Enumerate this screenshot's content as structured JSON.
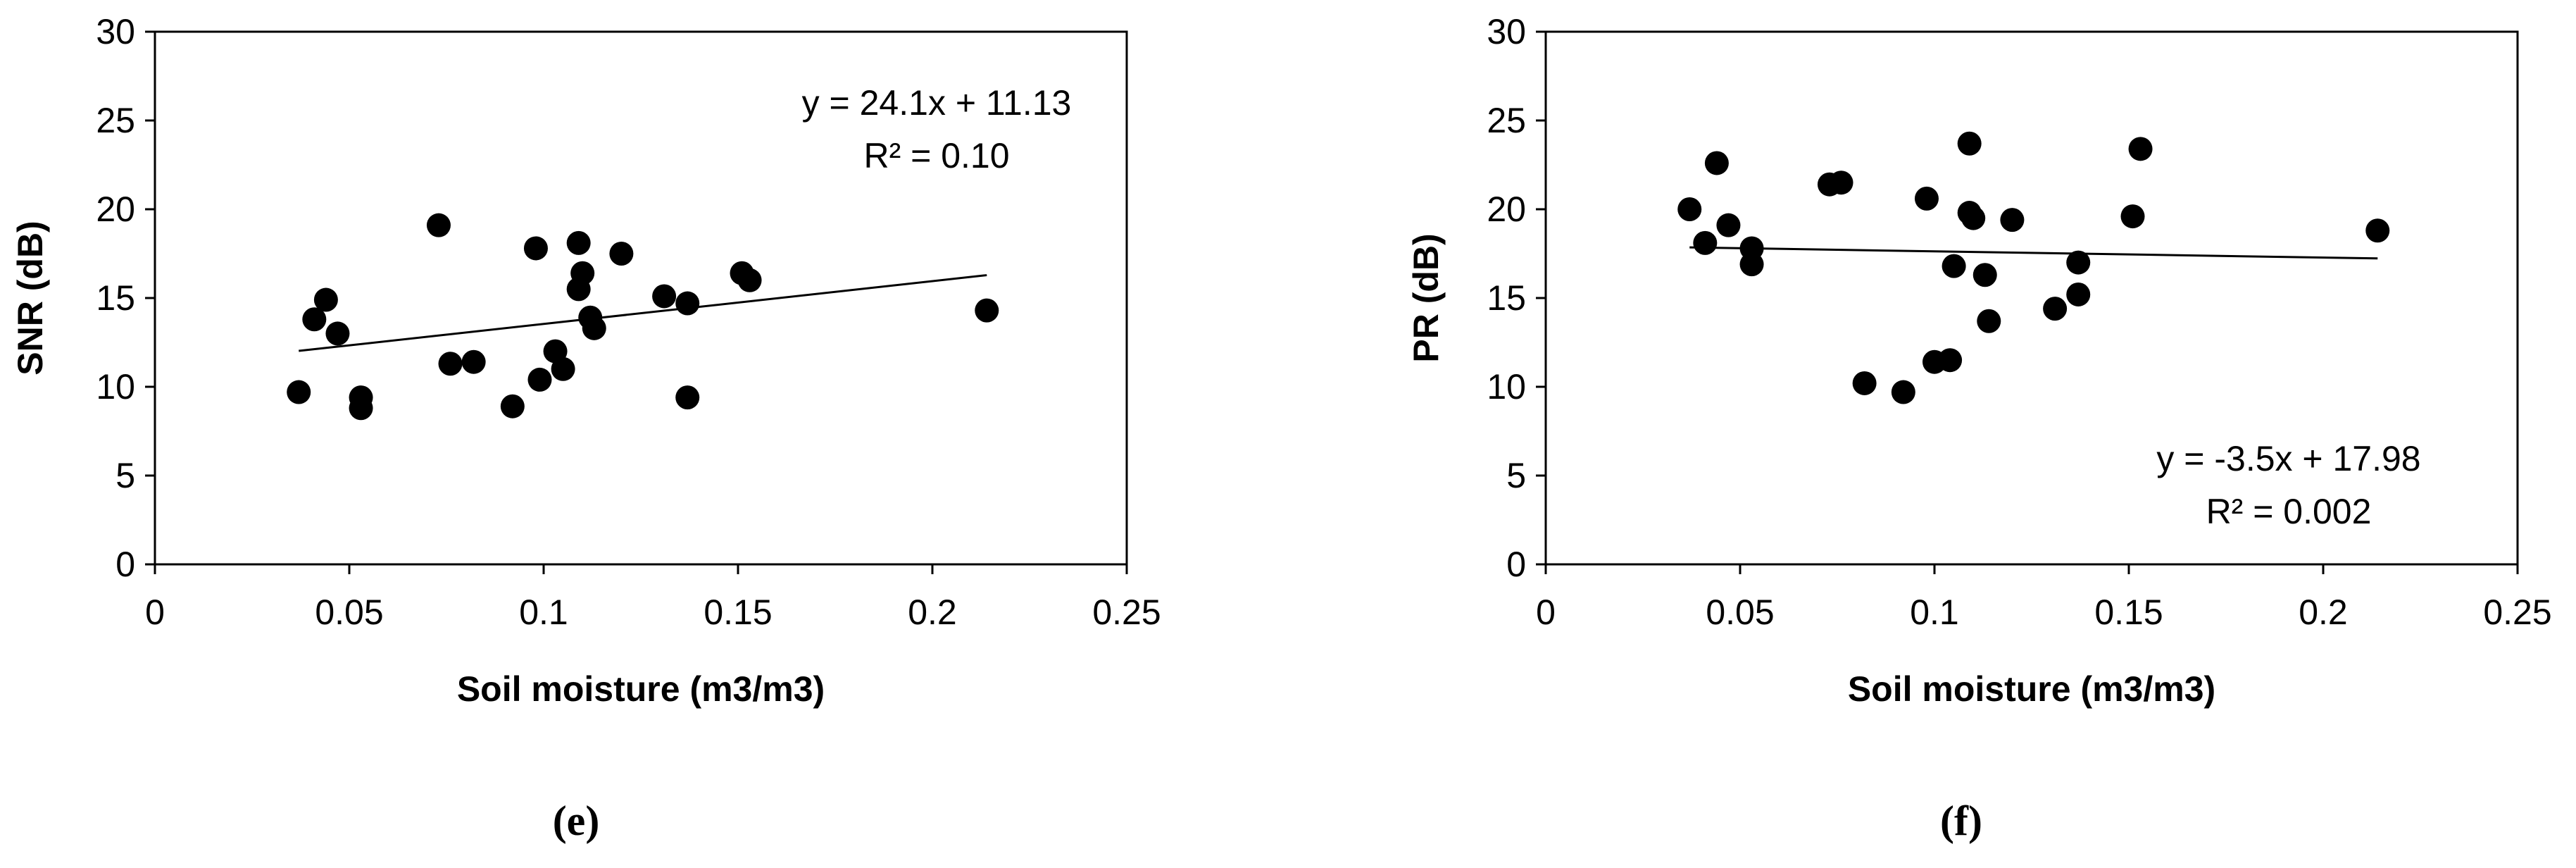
{
  "chart_data": [
    {
      "type": "scatter",
      "panel_label": "(e)",
      "xlabel": "Soil moisture (m3/m3)",
      "ylabel": "SNR (dB)",
      "xlim": [
        0,
        0.25
      ],
      "ylim": [
        0,
        30
      ],
      "xticks": [
        0,
        0.05,
        0.1,
        0.15,
        0.2,
        0.25
      ],
      "xtick_labels": [
        "0",
        "0.05",
        "0.1",
        "0.15",
        "0.2",
        "0.25"
      ],
      "yticks": [
        0,
        5,
        10,
        15,
        20,
        25,
        30
      ],
      "ytick_labels": [
        "0",
        "5",
        "10",
        "15",
        "20",
        "25",
        "30"
      ],
      "grid": false,
      "marker_color": "#000000",
      "trendline": {
        "slope": 24.1,
        "intercept": 11.13,
        "x_range": [
          0.037,
          0.214
        ]
      },
      "equation_text": "y = 24.1x + 11.13",
      "r2_text": "R² = 0.10",
      "points": [
        [
          0.037,
          9.7
        ],
        [
          0.041,
          13.8
        ],
        [
          0.044,
          14.9
        ],
        [
          0.047,
          13.0
        ],
        [
          0.053,
          9.4
        ],
        [
          0.053,
          8.8
        ],
        [
          0.073,
          19.1
        ],
        [
          0.076,
          11.3
        ],
        [
          0.082,
          11.4
        ],
        [
          0.092,
          8.9
        ],
        [
          0.098,
          17.8
        ],
        [
          0.099,
          10.4
        ],
        [
          0.103,
          12.0
        ],
        [
          0.105,
          11.0
        ],
        [
          0.109,
          18.1
        ],
        [
          0.109,
          15.5
        ],
        [
          0.11,
          16.4
        ],
        [
          0.112,
          13.9
        ],
        [
          0.113,
          13.3
        ],
        [
          0.12,
          17.5
        ],
        [
          0.131,
          15.1
        ],
        [
          0.137,
          14.7
        ],
        [
          0.137,
          9.4
        ],
        [
          0.151,
          16.4
        ],
        [
          0.153,
          16.0
        ],
        [
          0.214,
          14.3
        ]
      ]
    },
    {
      "type": "scatter",
      "panel_label": "(f)",
      "xlabel": "Soil moisture (m3/m3)",
      "ylabel": "PR (dB)",
      "xlim": [
        0,
        0.25
      ],
      "ylim": [
        0,
        30
      ],
      "xticks": [
        0,
        0.05,
        0.1,
        0.15,
        0.2,
        0.25
      ],
      "xtick_labels": [
        "0",
        "0.05",
        "0.1",
        "0.15",
        "0.2",
        "0.25"
      ],
      "yticks": [
        0,
        5,
        10,
        15,
        20,
        25,
        30
      ],
      "ytick_labels": [
        "0",
        "5",
        "10",
        "15",
        "20",
        "25",
        "30"
      ],
      "grid": false,
      "marker_color": "#000000",
      "trendline": {
        "slope": -3.5,
        "intercept": 17.98,
        "x_range": [
          0.037,
          0.214
        ]
      },
      "equation_text": "y = -3.5x + 17.98",
      "r2_text": "R² = 0.002",
      "points": [
        [
          0.037,
          20.0
        ],
        [
          0.041,
          18.1
        ],
        [
          0.044,
          22.6
        ],
        [
          0.047,
          19.1
        ],
        [
          0.053,
          17.8
        ],
        [
          0.053,
          16.9
        ],
        [
          0.073,
          21.4
        ],
        [
          0.076,
          21.5
        ],
        [
          0.082,
          10.2
        ],
        [
          0.092,
          9.7
        ],
        [
          0.098,
          20.6
        ],
        [
          0.1,
          11.4
        ],
        [
          0.104,
          11.5
        ],
        [
          0.105,
          16.8
        ],
        [
          0.109,
          23.7
        ],
        [
          0.109,
          19.8
        ],
        [
          0.11,
          19.5
        ],
        [
          0.113,
          16.3
        ],
        [
          0.114,
          13.7
        ],
        [
          0.12,
          19.4
        ],
        [
          0.131,
          14.4
        ],
        [
          0.137,
          17.0
        ],
        [
          0.137,
          15.2
        ],
        [
          0.151,
          19.6
        ],
        [
          0.153,
          23.4
        ],
        [
          0.214,
          18.8
        ]
      ]
    }
  ]
}
